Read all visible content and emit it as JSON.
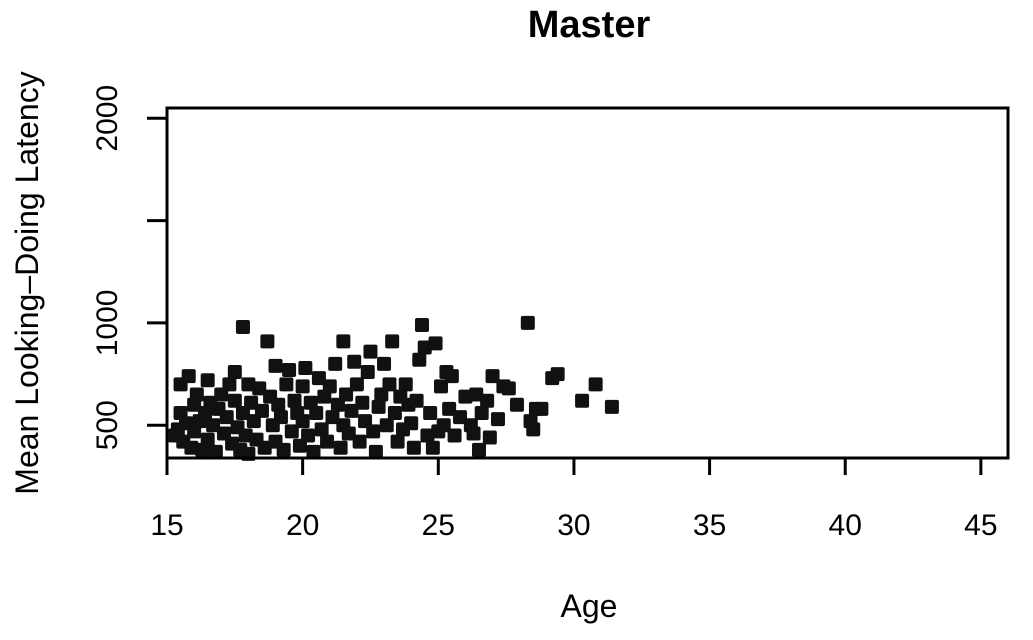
{
  "chart_data": {
    "type": "scatter",
    "title": "Master",
    "xlabel": "Age",
    "ylabel": "Mean Looking–Doing Latency",
    "xlim": [
      15,
      46
    ],
    "ylim": [
      340,
      2050
    ],
    "x_ticks": [
      15,
      20,
      25,
      30,
      35,
      40,
      45
    ],
    "x_tick_labels": [
      "15",
      "20",
      "25",
      "30",
      "35",
      "40",
      "45"
    ],
    "y_ticks": [
      500,
      1000,
      1500,
      2000
    ],
    "y_tick_labels": [
      "500",
      "1000",
      "",
      "2000"
    ],
    "grid": false,
    "legend": "none",
    "marker_color": "#111111",
    "points": [
      [
        15.3,
        450
      ],
      [
        15.4,
        480
      ],
      [
        15.5,
        560
      ],
      [
        15.5,
        700
      ],
      [
        15.6,
        420
      ],
      [
        15.7,
        510
      ],
      [
        15.8,
        740
      ],
      [
        15.9,
        390
      ],
      [
        16.0,
        600
      ],
      [
        16.0,
        470
      ],
      [
        16.1,
        650
      ],
      [
        16.2,
        520
      ],
      [
        16.3,
        380
      ],
      [
        16.4,
        560
      ],
      [
        16.5,
        720
      ],
      [
        16.5,
        430
      ],
      [
        16.6,
        610
      ],
      [
        16.7,
        500
      ],
      [
        16.8,
        370
      ],
      [
        16.9,
        580
      ],
      [
        17.0,
        650
      ],
      [
        17.1,
        460
      ],
      [
        17.2,
        540
      ],
      [
        17.3,
        700
      ],
      [
        17.4,
        410
      ],
      [
        17.5,
        620
      ],
      [
        17.5,
        760
      ],
      [
        17.6,
        490
      ],
      [
        17.7,
        380
      ],
      [
        17.8,
        980
      ],
      [
        17.8,
        560
      ],
      [
        17.9,
        450
      ],
      [
        18.0,
        700
      ],
      [
        18.0,
        360
      ],
      [
        18.1,
        610
      ],
      [
        18.2,
        520
      ],
      [
        18.3,
        430
      ],
      [
        18.4,
        680
      ],
      [
        18.5,
        570
      ],
      [
        18.6,
        390
      ],
      [
        18.7,
        910
      ],
      [
        18.8,
        640
      ],
      [
        18.9,
        500
      ],
      [
        19.0,
        790
      ],
      [
        19.0,
        420
      ],
      [
        19.1,
        600
      ],
      [
        19.2,
        540
      ],
      [
        19.3,
        380
      ],
      [
        19.4,
        700
      ],
      [
        19.5,
        770
      ],
      [
        19.6,
        470
      ],
      [
        19.7,
        620
      ],
      [
        19.8,
        560
      ],
      [
        19.9,
        400
      ],
      [
        20.0,
        690
      ],
      [
        20.0,
        520
      ],
      [
        20.1,
        780
      ],
      [
        20.2,
        450
      ],
      [
        20.3,
        610
      ],
      [
        20.4,
        370
      ],
      [
        20.5,
        560
      ],
      [
        20.6,
        730
      ],
      [
        20.7,
        480
      ],
      [
        20.8,
        640
      ],
      [
        20.9,
        420
      ],
      [
        21.0,
        690
      ],
      [
        21.1,
        540
      ],
      [
        21.2,
        800
      ],
      [
        21.3,
        600
      ],
      [
        21.4,
        390
      ],
      [
        21.5,
        910
      ],
      [
        21.5,
        500
      ],
      [
        21.6,
        650
      ],
      [
        21.7,
        460
      ],
      [
        21.8,
        570
      ],
      [
        21.9,
        810
      ],
      [
        22.0,
        700
      ],
      [
        22.1,
        420
      ],
      [
        22.2,
        610
      ],
      [
        22.3,
        520
      ],
      [
        22.4,
        760
      ],
      [
        22.5,
        860
      ],
      [
        22.6,
        470
      ],
      [
        22.7,
        370
      ],
      [
        22.8,
        590
      ],
      [
        22.9,
        650
      ],
      [
        23.0,
        800
      ],
      [
        23.1,
        500
      ],
      [
        23.2,
        700
      ],
      [
        23.3,
        910
      ],
      [
        23.4,
        560
      ],
      [
        23.5,
        420
      ],
      [
        23.6,
        640
      ],
      [
        23.7,
        480
      ],
      [
        23.8,
        700
      ],
      [
        23.9,
        600
      ],
      [
        24.0,
        510
      ],
      [
        24.1,
        390
      ],
      [
        24.2,
        620
      ],
      [
        24.3,
        820
      ],
      [
        24.4,
        990
      ],
      [
        24.5,
        880
      ],
      [
        24.6,
        450
      ],
      [
        24.7,
        560
      ],
      [
        24.8,
        390
      ],
      [
        24.9,
        900
      ],
      [
        25.0,
        470
      ],
      [
        25.1,
        690
      ],
      [
        25.2,
        500
      ],
      [
        25.3,
        760
      ],
      [
        25.4,
        580
      ],
      [
        25.5,
        740
      ],
      [
        25.6,
        450
      ],
      [
        25.8,
        540
      ],
      [
        26.0,
        640
      ],
      [
        26.2,
        500
      ],
      [
        26.3,
        460
      ],
      [
        26.4,
        650
      ],
      [
        26.5,
        380
      ],
      [
        26.6,
        560
      ],
      [
        26.8,
        620
      ],
      [
        26.9,
        440
      ],
      [
        27.0,
        740
      ],
      [
        27.2,
        530
      ],
      [
        27.4,
        690
      ],
      [
        27.6,
        680
      ],
      [
        27.9,
        600
      ],
      [
        28.3,
        1000
      ],
      [
        28.4,
        520
      ],
      [
        28.5,
        480
      ],
      [
        28.6,
        580
      ],
      [
        28.8,
        580
      ],
      [
        29.2,
        730
      ],
      [
        29.4,
        750
      ],
      [
        30.3,
        620
      ],
      [
        30.8,
        700
      ],
      [
        31.4,
        590
      ]
    ]
  }
}
